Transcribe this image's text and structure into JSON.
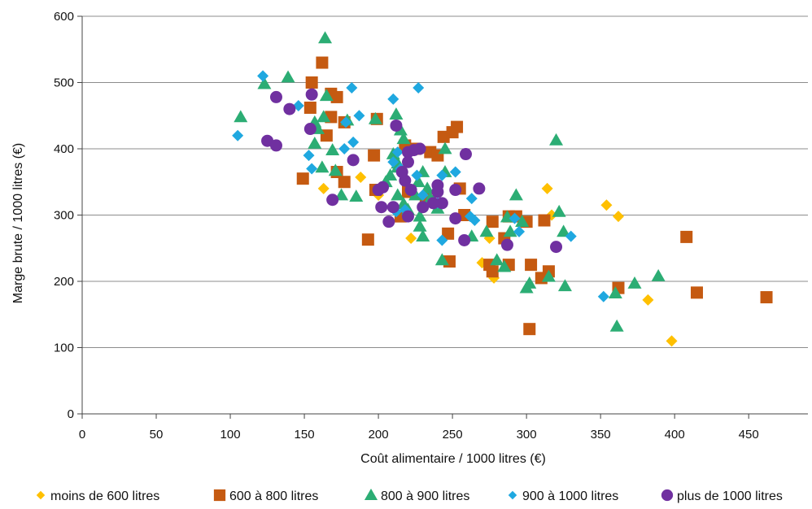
{
  "chart_data": {
    "type": "scatter",
    "title": "",
    "xlabel": "Coût alimentaire / 1000 litres (€)",
    "ylabel": "Marge brute / 1000 litres (€)",
    "xlim": [
      0,
      490
    ],
    "ylim": [
      0,
      600
    ],
    "x_ticks": [
      "0",
      "50",
      "100",
      "150",
      "200",
      "250",
      "300",
      "350",
      "400",
      "450"
    ],
    "y_ticks": [
      "0",
      "100",
      "200",
      "300",
      "400",
      "500",
      "600"
    ],
    "grid": "horizontal",
    "legend_position": "bottom",
    "series": [
      {
        "name": "moins de 600 litres",
        "color": "#ffc000",
        "marker": "diamond",
        "points": [
          [
            163,
            340
          ],
          [
            188,
            357
          ],
          [
            200,
            330
          ],
          [
            222,
            265
          ],
          [
            275,
            265
          ],
          [
            270,
            228
          ],
          [
            278,
            205
          ],
          [
            314,
            340
          ],
          [
            317,
            300
          ],
          [
            354,
            315
          ],
          [
            362,
            298
          ],
          [
            382,
            172
          ],
          [
            398,
            110
          ]
        ]
      },
      {
        "name": "600 à 800 litres",
        "color": "#c55a11",
        "marker": "square",
        "points": [
          [
            162,
            530
          ],
          [
            155,
            500
          ],
          [
            168,
            483
          ],
          [
            172,
            478
          ],
          [
            154,
            462
          ],
          [
            168,
            448
          ],
          [
            177,
            440
          ],
          [
            165,
            420
          ],
          [
            199,
            445
          ],
          [
            149,
            355
          ],
          [
            172,
            365
          ],
          [
            177,
            350
          ],
          [
            197,
            390
          ],
          [
            198,
            338
          ],
          [
            193,
            263
          ],
          [
            215,
            298
          ],
          [
            218,
            405
          ],
          [
            225,
            400
          ],
          [
            235,
            395
          ],
          [
            240,
            390
          ],
          [
            244,
            418
          ],
          [
            250,
            425
          ],
          [
            253,
            433
          ],
          [
            232,
            325
          ],
          [
            220,
            335
          ],
          [
            247,
            272
          ],
          [
            248,
            230
          ],
          [
            255,
            340
          ],
          [
            258,
            300
          ],
          [
            275,
            225
          ],
          [
            277,
            215
          ],
          [
            277,
            290
          ],
          [
            285,
            265
          ],
          [
            288,
            298
          ],
          [
            288,
            225
          ],
          [
            293,
            298
          ],
          [
            300,
            290
          ],
          [
            303,
            225
          ],
          [
            302,
            128
          ],
          [
            310,
            205
          ],
          [
            312,
            292
          ],
          [
            315,
            215
          ],
          [
            362,
            190
          ],
          [
            408,
            267
          ],
          [
            415,
            183
          ],
          [
            462,
            176
          ]
        ]
      },
      {
        "name": "800 à 900 litres",
        "color": "#2cad74",
        "marker": "triangle",
        "points": [
          [
            164,
            567
          ],
          [
            123,
            498
          ],
          [
            139,
            508
          ],
          [
            107,
            448
          ],
          [
            157,
            440
          ],
          [
            159,
            430
          ],
          [
            165,
            480
          ],
          [
            163,
            448
          ],
          [
            169,
            398
          ],
          [
            171,
            367
          ],
          [
            162,
            372
          ],
          [
            157,
            408
          ],
          [
            175,
            330
          ],
          [
            185,
            328
          ],
          [
            179,
            443
          ],
          [
            198,
            445
          ],
          [
            212,
            452
          ],
          [
            215,
            428
          ],
          [
            217,
            415
          ],
          [
            210,
            392
          ],
          [
            213,
            378
          ],
          [
            213,
            372
          ],
          [
            205,
            350
          ],
          [
            208,
            360
          ],
          [
            213,
            330
          ],
          [
            217,
            317
          ],
          [
            220,
            308
          ],
          [
            225,
            330
          ],
          [
            227,
            350
          ],
          [
            230,
            365
          ],
          [
            233,
            340
          ],
          [
            235,
            325
          ],
          [
            228,
            298
          ],
          [
            228,
            283
          ],
          [
            230,
            268
          ],
          [
            237,
            322
          ],
          [
            240,
            310
          ],
          [
            245,
            365
          ],
          [
            245,
            400
          ],
          [
            243,
            232
          ],
          [
            263,
            268
          ],
          [
            273,
            275
          ],
          [
            280,
            232
          ],
          [
            285,
            222
          ],
          [
            287,
            297
          ],
          [
            289,
            275
          ],
          [
            293,
            330
          ],
          [
            297,
            290
          ],
          [
            300,
            190
          ],
          [
            302,
            197
          ],
          [
            315,
            207
          ],
          [
            322,
            305
          ],
          [
            325,
            275
          ],
          [
            326,
            193
          ],
          [
            320,
            413
          ],
          [
            360,
            182
          ],
          [
            361,
            132
          ],
          [
            373,
            197
          ],
          [
            389,
            208
          ]
        ]
      },
      {
        "name": "900 à 1000 litres",
        "color": "#1fa8e0",
        "marker": "diamond",
        "points": [
          [
            122,
            510
          ],
          [
            105,
            420
          ],
          [
            146,
            465
          ],
          [
            153,
            390
          ],
          [
            155,
            370
          ],
          [
            182,
            492
          ],
          [
            187,
            450
          ],
          [
            178,
            440
          ],
          [
            183,
            410
          ],
          [
            177,
            400
          ],
          [
            210,
            475
          ],
          [
            210,
            380
          ],
          [
            213,
            395
          ],
          [
            215,
            370
          ],
          [
            218,
            308
          ],
          [
            212,
            305
          ],
          [
            227,
            492
          ],
          [
            226,
            360
          ],
          [
            230,
            330
          ],
          [
            243,
            360
          ],
          [
            240,
            318
          ],
          [
            252,
            365
          ],
          [
            243,
            262
          ],
          [
            263,
            325
          ],
          [
            262,
            298
          ],
          [
            265,
            292
          ],
          [
            292,
            295
          ],
          [
            295,
            275
          ],
          [
            330,
            268
          ],
          [
            352,
            177
          ]
        ]
      },
      {
        "name": "plus de 1000 litres",
        "color": "#7030a0",
        "marker": "circle",
        "points": [
          [
            155,
            482
          ],
          [
            131,
            478
          ],
          [
            125,
            412
          ],
          [
            131,
            405
          ],
          [
            140,
            460
          ],
          [
            154,
            430
          ],
          [
            169,
            323
          ],
          [
            183,
            383
          ],
          [
            200,
            338
          ],
          [
            202,
            312
          ],
          [
            203,
            342
          ],
          [
            207,
            290
          ],
          [
            210,
            312
          ],
          [
            212,
            435
          ],
          [
            216,
            365
          ],
          [
            218,
            352
          ],
          [
            220,
            395
          ],
          [
            220,
            380
          ],
          [
            222,
            338
          ],
          [
            224,
            398
          ],
          [
            228,
            400
          ],
          [
            220,
            298
          ],
          [
            230,
            312
          ],
          [
            237,
            318
          ],
          [
            240,
            345
          ],
          [
            240,
            335
          ],
          [
            243,
            318
          ],
          [
            252,
            338
          ],
          [
            252,
            295
          ],
          [
            258,
            262
          ],
          [
            259,
            392
          ],
          [
            268,
            340
          ],
          [
            287,
            255
          ],
          [
            320,
            252
          ]
        ]
      }
    ]
  }
}
